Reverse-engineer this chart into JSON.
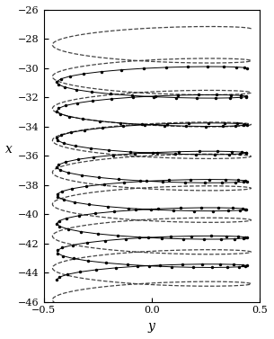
{
  "title": "",
  "xlabel": "y",
  "ylabel": "x",
  "xlim": [
    -0.5,
    0.5
  ],
  "ylim": [
    -46,
    -26
  ],
  "alpha": 2.41,
  "beta": 0.65,
  "exp_dot_color": "black",
  "exp_line_color": "black",
  "comp_line_color": "black",
  "marker_size": 2.5,
  "exp_linewidth": 0.7,
  "comp_linewidth": 0.9,
  "comp_dash_linewidth": 1.0,
  "tick_fontsize": 8,
  "label_fontsize": 10
}
